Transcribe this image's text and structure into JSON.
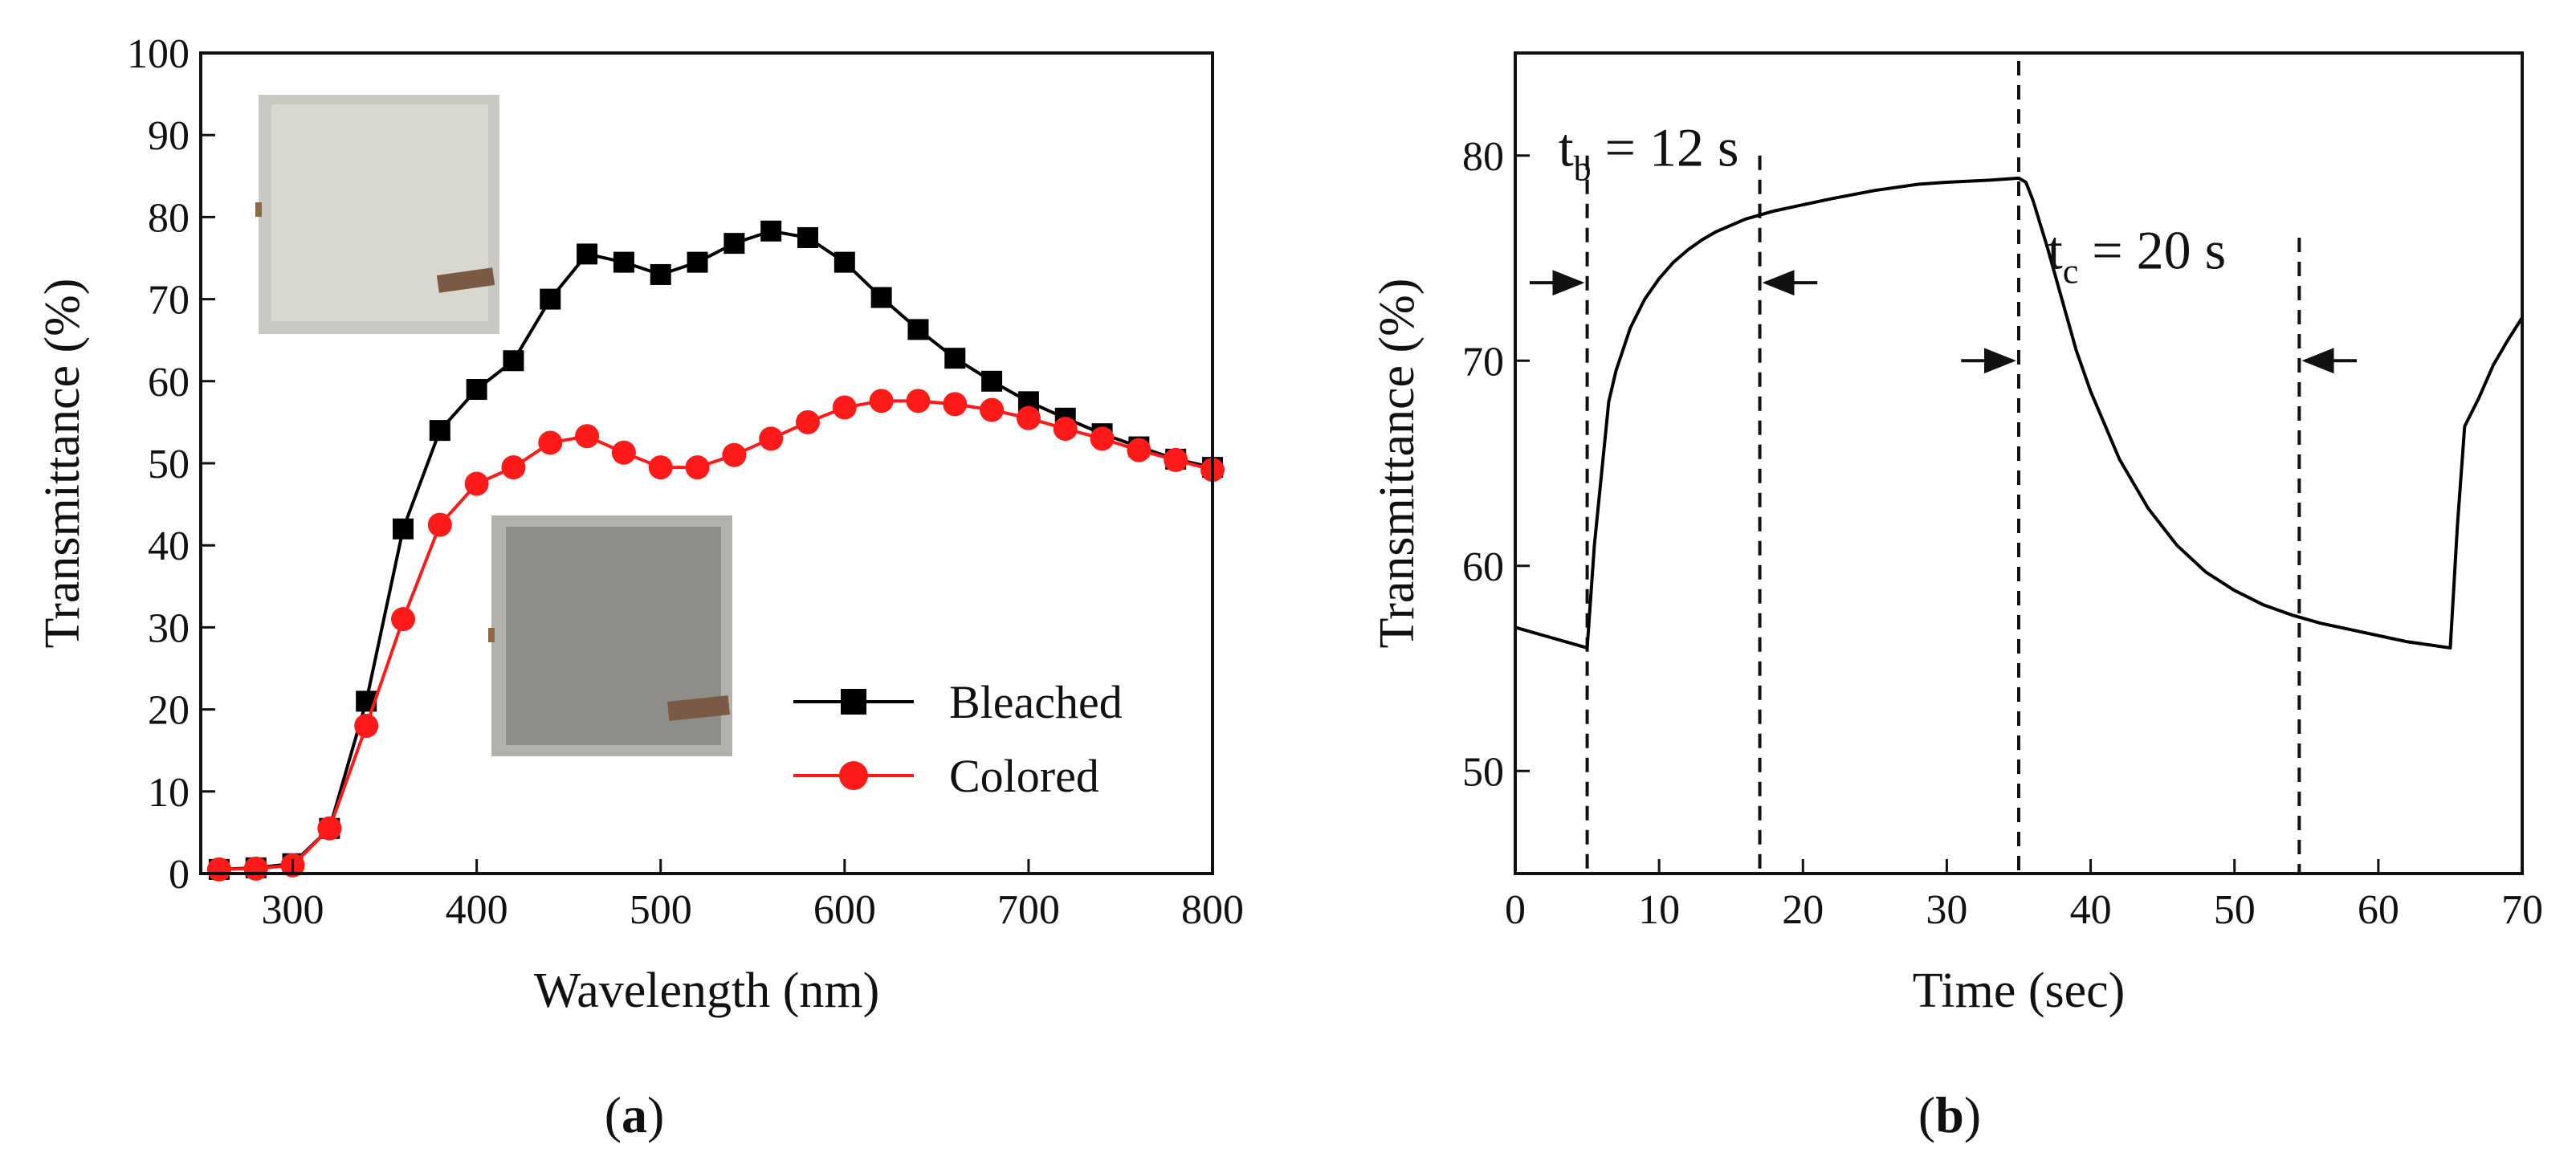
{
  "colors": {
    "bleached": "#000000",
    "colored": "#ff1a1a",
    "axis": "#111111"
  },
  "captions": {
    "a": "a",
    "b": "b",
    "open": "(",
    "close": ")"
  },
  "chart_data": [
    {
      "id": "a",
      "type": "line",
      "title": "",
      "xlabel": "Wavelength (nm)",
      "ylabel": "Transmittance (%)",
      "xlim": [
        250,
        800
      ],
      "ylim": [
        0,
        100
      ],
      "xticks": [
        300,
        400,
        500,
        600,
        700,
        800
      ],
      "yticks": [
        0,
        10,
        20,
        30,
        40,
        50,
        60,
        70,
        80,
        90,
        100
      ],
      "grid": false,
      "legend_position": "bottom-right",
      "insets": [
        "bleached-sample-photo",
        "colored-sample-photo"
      ],
      "series": [
        {
          "name": "Bleached",
          "marker": "square",
          "color": "#000000",
          "x": [
            260,
            280,
            300,
            320,
            340,
            360,
            380,
            400,
            420,
            440,
            460,
            480,
            500,
            520,
            540,
            560,
            580,
            600,
            620,
            640,
            660,
            680,
            700,
            720,
            740,
            760,
            780,
            800
          ],
          "y": [
            0.5,
            0.7,
            1.2,
            5.5,
            21,
            42,
            54,
            59,
            62.5,
            70,
            75.5,
            74.5,
            73,
            74.5,
            76.8,
            78.3,
            77.5,
            74.5,
            70.2,
            66.3,
            62.8,
            60,
            57.5,
            55.5,
            53.6,
            52,
            50.5,
            49.5
          ]
        },
        {
          "name": "Colored",
          "marker": "circle",
          "color": "#ff1a1a",
          "x": [
            260,
            280,
            300,
            320,
            340,
            360,
            380,
            400,
            420,
            440,
            460,
            480,
            500,
            520,
            540,
            560,
            580,
            600,
            620,
            640,
            660,
            680,
            700,
            720,
            740,
            760,
            780,
            800
          ],
          "y": [
            0.5,
            0.6,
            1,
            5.5,
            18,
            31,
            42.5,
            47.5,
            49.5,
            52.5,
            53.3,
            51.3,
            49.5,
            49.5,
            51,
            53,
            55,
            56.8,
            57.6,
            57.6,
            57.2,
            56.5,
            55.5,
            54.2,
            53,
            51.6,
            50.4,
            49.2
          ]
        }
      ]
    },
    {
      "id": "b",
      "type": "line",
      "title": "",
      "xlabel": "Time (sec)",
      "ylabel": "Transmittance (%)",
      "xlim": [
        0,
        70
      ],
      "ylim": [
        45,
        85
      ],
      "xticks": [
        0,
        10,
        20,
        30,
        40,
        50,
        60,
        70
      ],
      "yticks": [
        50,
        60,
        70,
        80
      ],
      "grid": false,
      "series": [
        {
          "name": "Transmittance",
          "color": "#000000",
          "x": [
            0,
            2,
            4,
            5,
            5.5,
            6,
            6.5,
            7,
            8,
            9,
            10,
            11,
            12,
            13,
            14,
            15,
            16,
            17,
            18,
            20,
            22,
            25,
            28,
            30,
            33,
            35,
            35.5,
            36,
            37,
            38,
            39,
            40,
            42,
            44,
            46,
            48,
            50,
            52,
            54,
            56,
            58,
            60,
            62,
            64,
            65,
            65.5,
            66,
            67,
            68,
            69,
            70
          ],
          "y": [
            57,
            56.6,
            56.2,
            56,
            61,
            64.5,
            68,
            69.5,
            71.6,
            73,
            74,
            74.8,
            75.4,
            75.9,
            76.3,
            76.6,
            76.9,
            77.1,
            77.3,
            77.6,
            77.9,
            78.3,
            78.6,
            78.7,
            78.8,
            78.9,
            78.7,
            77.8,
            75.5,
            73,
            70.5,
            68.5,
            65.2,
            62.8,
            61,
            59.7,
            58.8,
            58.1,
            57.6,
            57.2,
            56.9,
            56.6,
            56.3,
            56.1,
            56,
            62,
            66.8,
            68.2,
            69.8,
            71,
            72.1
          ]
        }
      ],
      "annotations": [
        {
          "id": "tb",
          "main": "t",
          "sub": "b",
          "rest": " = 12 s",
          "x": 3,
          "y": 79.5
        },
        {
          "id": "tc",
          "main": "t",
          "sub": "c",
          "rest": " = 20 s",
          "x": 37,
          "y": 74.5
        }
      ],
      "vertical_lines": [
        5,
        17,
        35,
        54.5
      ],
      "arrows": [
        {
          "x_from": 1,
          "x_to": 4.6,
          "y": 73.8
        },
        {
          "x_from": 21,
          "x_to": 17.4,
          "y": 73.8
        },
        {
          "x_from": 31,
          "x_to": 34.6,
          "y": 70
        },
        {
          "x_from": 58.5,
          "x_to": 54.9,
          "y": 70
        }
      ]
    }
  ]
}
